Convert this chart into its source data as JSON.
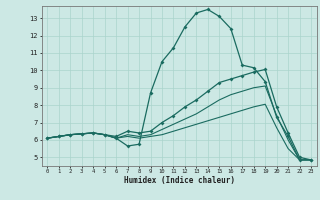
{
  "xlabel": "Humidex (Indice chaleur)",
  "bg_color": "#cce8e4",
  "grid_color": "#aad4cc",
  "line_color": "#1a6b60",
  "xlim": [
    -0.5,
    23.5
  ],
  "ylim": [
    4.5,
    13.7
  ],
  "xticks": [
    0,
    1,
    2,
    3,
    4,
    5,
    6,
    7,
    8,
    9,
    10,
    11,
    12,
    13,
    14,
    15,
    16,
    17,
    18,
    19,
    20,
    21,
    22,
    23
  ],
  "yticks": [
    5,
    6,
    7,
    8,
    9,
    10,
    11,
    12,
    13
  ],
  "line1_x": [
    0,
    1,
    2,
    3,
    4,
    5,
    6,
    7,
    8,
    9,
    10,
    11,
    12,
    13,
    14,
    15,
    16,
    17,
    18,
    19,
    20,
    21,
    22,
    23
  ],
  "line1_y": [
    6.1,
    6.2,
    6.3,
    6.35,
    6.4,
    6.3,
    6.1,
    5.65,
    5.75,
    8.7,
    10.5,
    11.3,
    12.5,
    13.3,
    13.5,
    13.1,
    12.4,
    10.3,
    10.15,
    9.35,
    7.3,
    6.2,
    4.85,
    4.85
  ],
  "line2_x": [
    0,
    1,
    2,
    3,
    4,
    5,
    6,
    7,
    8,
    9,
    10,
    11,
    12,
    13,
    14,
    15,
    16,
    17,
    18,
    19,
    20,
    21,
    22,
    23
  ],
  "line2_y": [
    6.1,
    6.2,
    6.3,
    6.35,
    6.4,
    6.3,
    6.2,
    6.5,
    6.4,
    6.5,
    7.0,
    7.4,
    7.9,
    8.3,
    8.8,
    9.3,
    9.5,
    9.7,
    9.9,
    10.05,
    7.9,
    6.4,
    5.0,
    4.85
  ],
  "line3_x": [
    0,
    1,
    2,
    3,
    4,
    5,
    6,
    7,
    8,
    9,
    10,
    11,
    12,
    13,
    14,
    15,
    16,
    17,
    18,
    19,
    20,
    21,
    22,
    23
  ],
  "line3_y": [
    6.1,
    6.2,
    6.3,
    6.35,
    6.4,
    6.3,
    6.1,
    6.3,
    6.2,
    6.3,
    6.6,
    6.9,
    7.2,
    7.5,
    7.9,
    8.3,
    8.6,
    8.8,
    9.0,
    9.1,
    7.4,
    6.0,
    4.85,
    4.85
  ],
  "line4_x": [
    0,
    1,
    2,
    3,
    4,
    5,
    6,
    7,
    8,
    9,
    10,
    11,
    12,
    13,
    14,
    15,
    16,
    17,
    18,
    19,
    20,
    21,
    22,
    23
  ],
  "line4_y": [
    6.1,
    6.2,
    6.3,
    6.35,
    6.4,
    6.3,
    6.1,
    6.2,
    6.1,
    6.2,
    6.3,
    6.5,
    6.7,
    6.9,
    7.1,
    7.3,
    7.5,
    7.7,
    7.9,
    8.05,
    6.7,
    5.5,
    4.85,
    4.85
  ]
}
